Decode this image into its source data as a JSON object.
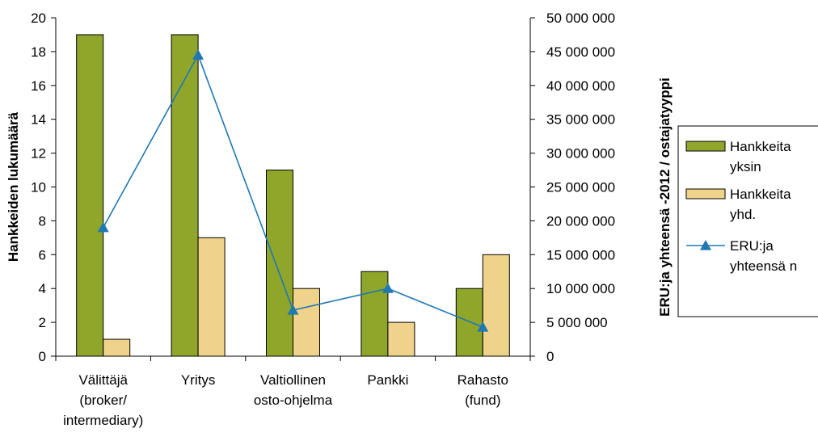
{
  "chart_data": {
    "type": "bar",
    "title": "",
    "categories": [
      [
        "Välittäjä",
        "(broker/",
        "intermediary)"
      ],
      [
        "Yritys"
      ],
      [
        "Valtiollinen",
        "osto-ohjelma"
      ],
      [
        "Pankki"
      ],
      [
        "Rahasto",
        "(fund)"
      ]
    ],
    "series": [
      {
        "name": "Hankkeita yksin",
        "kind": "bar",
        "axis": "left",
        "color": "#8fa62b",
        "values": [
          19,
          19,
          11,
          5,
          4
        ]
      },
      {
        "name": "Hankkeita yhd.",
        "kind": "bar",
        "axis": "left",
        "color": "#efd38b",
        "values": [
          1,
          7,
          4,
          2,
          6
        ]
      },
      {
        "name": "ERU:ja yhteensä n",
        "kind": "line",
        "axis": "right",
        "color": "#1f77b4",
        "marker": "triangle",
        "values": [
          19000000,
          44500000,
          6800000,
          10000000,
          4300000
        ]
      }
    ],
    "ylabel": "Hankkeiden lukumäärä",
    "ylim": [
      0,
      20
    ],
    "yticks": [
      "0",
      "2",
      "4",
      "6",
      "8",
      "10",
      "12",
      "14",
      "16",
      "18",
      "20"
    ],
    "y2label": "ERU:ja yhteensä -2012 / ostajatyyppi",
    "y2lim": [
      0,
      50000000
    ],
    "y2ticks": [
      "0",
      "5 000 000",
      "10 000 000",
      "15 000 000",
      "20 000 000",
      "25 000 000",
      "30 000 000",
      "35 000 000",
      "40 000 000",
      "45 000 000",
      "50 000 000"
    ],
    "legend": {
      "placement": "right",
      "items": [
        {
          "lines": [
            "Hankkeita",
            "yksin"
          ]
        },
        {
          "lines": [
            "Hankkeita",
            "yhd."
          ]
        },
        {
          "lines": [
            "ERU:ja",
            "yhteensä n"
          ]
        }
      ]
    },
    "grid": false
  }
}
